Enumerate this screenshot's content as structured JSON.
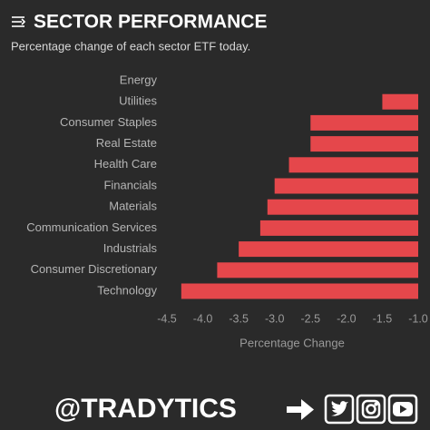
{
  "chart_data": {
    "type": "bar",
    "orientation": "horizontal",
    "title": "SECTOR PERFORMANCE",
    "subtitle": "Percentage change of each sector ETF today.",
    "x_label": "Percentage Change",
    "categories": [
      "Energy",
      "Utilities",
      "Consumer Staples",
      "Real Estate",
      "Health Care",
      "Financials",
      "Materials",
      "Communication Services",
      "Industrials",
      "Consumer Discretionary",
      "Technology"
    ],
    "values": [
      -1.0,
      -1.5,
      -2.5,
      -2.5,
      -2.8,
      -3.0,
      -3.1,
      -3.2,
      -3.5,
      -3.8,
      -4.3
    ],
    "color": "#e5474b",
    "xlim": [
      -4.5,
      -1.0
    ],
    "xticks": [
      -4.5,
      {
        "value": -4,
        "label": "-4.0"
      },
      -3.5,
      {
        "value": -3,
        "label": "-3.0"
      },
      -2.5,
      {
        "value": -2,
        "label": "-2.0"
      },
      -1.5,
      {
        "value": -1,
        "label": "-1.0"
      }
    ],
    "grid": false
  },
  "footer_handle": "@TRADYTICS"
}
